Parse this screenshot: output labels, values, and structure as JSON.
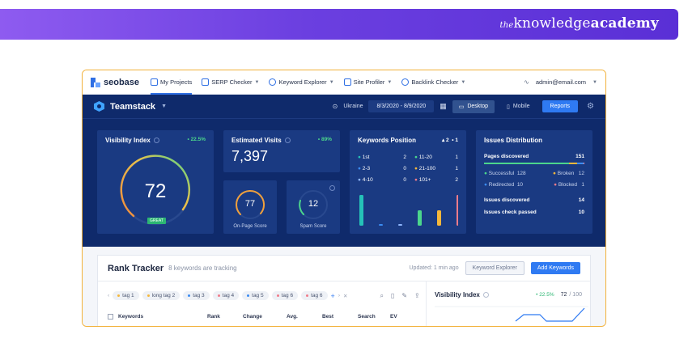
{
  "banner": {
    "brand_prefix": "the",
    "brand_main": "knowledge",
    "brand_bold": "academy",
    "bg": "#6b3fe0"
  },
  "nav": {
    "logo": "seobase",
    "items": [
      {
        "label": "My Projects",
        "icon": "folder-icon",
        "active": true
      },
      {
        "label": "SERP Checker",
        "icon": "serp-icon",
        "active": false
      },
      {
        "label": "Keyword Explorer",
        "icon": "search-icon",
        "active": false
      },
      {
        "label": "Site Profiler",
        "icon": "chart-icon",
        "active": false
      },
      {
        "label": "Backlink Checker",
        "icon": "link-icon",
        "active": false
      }
    ],
    "user": "admin@email.com"
  },
  "dash": {
    "project": "Teamstack",
    "country": "Ukraine",
    "date_range": "8/3/2020 - 8/9/2020",
    "device_desktop": "Desktop",
    "device_mobile": "Mobile",
    "reports": "Reports"
  },
  "visibility": {
    "title": "Visibility Index",
    "change": "• 22.5%",
    "value": "72",
    "badge": "GREAT"
  },
  "visits": {
    "title": "Estimated Visits",
    "change": "• 89%",
    "value": "7,397"
  },
  "onpage": {
    "value": "77",
    "label": "On-Page Score"
  },
  "spam": {
    "value": "12",
    "label": "Spam Score"
  },
  "positions": {
    "title": "Keywords Position",
    "up": "▴ 2",
    "down": "• 1",
    "left": [
      {
        "label": "1st",
        "value": "2",
        "color": "#25c2b8"
      },
      {
        "label": "2-3",
        "value": "0",
        "color": "#3b8cf2"
      },
      {
        "label": "4-10",
        "value": "0",
        "color": "#8fb7ff"
      }
    ],
    "right": [
      {
        "label": "11-20",
        "value": "1",
        "color": "#4bd68c"
      },
      {
        "label": "21-100",
        "value": "1",
        "color": "#f5b73b"
      },
      {
        "label": "101+",
        "value": "2",
        "color": "#f07c8a"
      }
    ],
    "bars": [
      {
        "value": 2,
        "color": "#25c2b8"
      },
      {
        "value": 0,
        "color": "#3b8cf2"
      },
      {
        "value": 0,
        "color": "#8fb7ff"
      },
      {
        "value": 1,
        "color": "#4bd68c"
      },
      {
        "value": 1,
        "color": "#f5b73b"
      },
      {
        "value": 2,
        "color": "#f07c8a"
      }
    ]
  },
  "issues": {
    "title": "Issues Distribution",
    "pages_label": "Pages discovered",
    "pages_value": "151",
    "rows": [
      {
        "a_label": "Successful",
        "a_val": "128",
        "a_color": "#4bd68c",
        "b_label": "Broken",
        "b_val": "12",
        "b_color": "#f5b73b"
      },
      {
        "a_label": "Redirected",
        "a_val": "10",
        "a_color": "#3b8cf2",
        "b_label": "Blocked",
        "b_val": "1",
        "b_color": "#f07c8a"
      }
    ],
    "discovered_label": "Issues discovered",
    "discovered_value": "14",
    "passed_label": "Issues check passed",
    "passed_value": "10"
  },
  "rank": {
    "title": "Rank Tracker",
    "subtitle": "8 keywords are tracking",
    "updated": "Updated: 1 min ago",
    "explorer_btn": "Keyword Explorer",
    "add_btn": "Add Keywords",
    "tags": [
      {
        "label": "tag 1",
        "color": "#f5b73b"
      },
      {
        "label": "long tag 2",
        "color": "#f5b73b"
      },
      {
        "label": "tag 3",
        "color": "#3b8cf2"
      },
      {
        "label": "tag 4",
        "color": "#f07c8a"
      },
      {
        "label": "tag 5",
        "color": "#3b8cf2"
      },
      {
        "label": "tag 6",
        "color": "#f07c8a"
      },
      {
        "label": "tag 6",
        "color": "#f07c8a"
      }
    ],
    "columns": [
      "Keywords",
      "Rank",
      "Change",
      "Avg.",
      "Best",
      "Search",
      "EV"
    ],
    "vis_title": "Visibility Index",
    "vis_change": "• 22.5%",
    "vis_value": "72",
    "vis_total": "/ 100"
  }
}
